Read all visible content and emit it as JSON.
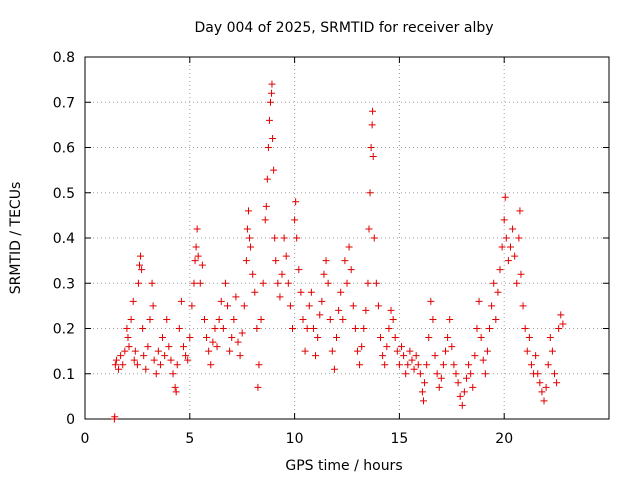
{
  "chart_data": {
    "type": "scatter",
    "title": "Day 004 of 2025, SRMTID for receiver alby",
    "xlabel": "GPS time / hours",
    "ylabel": "SRMTID / TECUs",
    "xlim": [
      0,
      25
    ],
    "ylim": [
      0,
      0.8
    ],
    "xticks": [
      "0",
      "5",
      "10",
      "15",
      "20"
    ],
    "yticks": [
      "0",
      "0.1",
      "0.2",
      "0.3",
      "0.4",
      "0.5",
      "0.6",
      "0.7",
      "0.8"
    ],
    "grid": true,
    "marker": "plus",
    "color": "#e00000",
    "series": [
      {
        "name": "SRMTID",
        "points": [
          [
            1.4,
            0.0
          ],
          [
            1.42,
            0.005
          ],
          [
            1.45,
            0.12
          ],
          [
            1.5,
            0.13
          ],
          [
            1.6,
            0.11
          ],
          [
            1.7,
            0.14
          ],
          [
            1.8,
            0.12
          ],
          [
            1.9,
            0.15
          ],
          [
            2.0,
            0.2
          ],
          [
            2.05,
            0.18
          ],
          [
            2.1,
            0.16
          ],
          [
            2.2,
            0.22
          ],
          [
            2.3,
            0.26
          ],
          [
            2.35,
            0.13
          ],
          [
            2.4,
            0.15
          ],
          [
            2.5,
            0.12
          ],
          [
            2.55,
            0.3
          ],
          [
            2.6,
            0.34
          ],
          [
            2.65,
            0.36
          ],
          [
            2.7,
            0.33
          ],
          [
            2.75,
            0.2
          ],
          [
            2.8,
            0.14
          ],
          [
            2.9,
            0.11
          ],
          [
            3.0,
            0.16
          ],
          [
            3.1,
            0.22
          ],
          [
            3.2,
            0.3
          ],
          [
            3.25,
            0.25
          ],
          [
            3.3,
            0.13
          ],
          [
            3.4,
            0.1
          ],
          [
            3.5,
            0.15
          ],
          [
            3.6,
            0.12
          ],
          [
            3.7,
            0.18
          ],
          [
            3.8,
            0.14
          ],
          [
            3.9,
            0.22
          ],
          [
            4.0,
            0.16
          ],
          [
            4.1,
            0.13
          ],
          [
            4.2,
            0.1
          ],
          [
            4.3,
            0.07
          ],
          [
            4.35,
            0.06
          ],
          [
            4.4,
            0.12
          ],
          [
            4.5,
            0.2
          ],
          [
            4.6,
            0.26
          ],
          [
            4.7,
            0.16
          ],
          [
            4.8,
            0.14
          ],
          [
            4.9,
            0.13
          ],
          [
            5.0,
            0.18
          ],
          [
            5.1,
            0.25
          ],
          [
            5.2,
            0.3
          ],
          [
            5.25,
            0.35
          ],
          [
            5.3,
            0.38
          ],
          [
            5.35,
            0.42
          ],
          [
            5.4,
            0.36
          ],
          [
            5.5,
            0.3
          ],
          [
            5.6,
            0.34
          ],
          [
            5.7,
            0.22
          ],
          [
            5.8,
            0.18
          ],
          [
            5.9,
            0.15
          ],
          [
            6.0,
            0.12
          ],
          [
            6.1,
            0.17
          ],
          [
            6.2,
            0.2
          ],
          [
            6.3,
            0.16
          ],
          [
            6.4,
            0.22
          ],
          [
            6.5,
            0.26
          ],
          [
            6.6,
            0.2
          ],
          [
            6.7,
            0.3
          ],
          [
            6.8,
            0.25
          ],
          [
            6.9,
            0.15
          ],
          [
            7.0,
            0.18
          ],
          [
            7.1,
            0.22
          ],
          [
            7.2,
            0.27
          ],
          [
            7.3,
            0.17
          ],
          [
            7.4,
            0.14
          ],
          [
            7.5,
            0.19
          ],
          [
            7.6,
            0.25
          ],
          [
            7.7,
            0.35
          ],
          [
            7.75,
            0.42
          ],
          [
            7.8,
            0.46
          ],
          [
            7.85,
            0.4
          ],
          [
            7.9,
            0.38
          ],
          [
            8.0,
            0.32
          ],
          [
            8.1,
            0.28
          ],
          [
            8.2,
            0.2
          ],
          [
            8.25,
            0.07
          ],
          [
            8.3,
            0.12
          ],
          [
            8.4,
            0.22
          ],
          [
            8.5,
            0.3
          ],
          [
            8.6,
            0.44
          ],
          [
            8.65,
            0.47
          ],
          [
            8.7,
            0.53
          ],
          [
            8.75,
            0.6
          ],
          [
            8.8,
            0.66
          ],
          [
            8.85,
            0.7
          ],
          [
            8.9,
            0.72
          ],
          [
            8.92,
            0.74
          ],
          [
            8.95,
            0.62
          ],
          [
            9.0,
            0.55
          ],
          [
            9.05,
            0.4
          ],
          [
            9.1,
            0.35
          ],
          [
            9.2,
            0.3
          ],
          [
            9.3,
            0.27
          ],
          [
            9.4,
            0.32
          ],
          [
            9.5,
            0.4
          ],
          [
            9.6,
            0.36
          ],
          [
            9.7,
            0.3
          ],
          [
            9.8,
            0.25
          ],
          [
            9.9,
            0.2
          ],
          [
            10.0,
            0.44
          ],
          [
            10.05,
            0.48
          ],
          [
            10.1,
            0.4
          ],
          [
            10.2,
            0.33
          ],
          [
            10.3,
            0.28
          ],
          [
            10.4,
            0.22
          ],
          [
            10.5,
            0.15
          ],
          [
            10.6,
            0.2
          ],
          [
            10.7,
            0.25
          ],
          [
            10.8,
            0.28
          ],
          [
            10.9,
            0.2
          ],
          [
            11.0,
            0.14
          ],
          [
            11.1,
            0.18
          ],
          [
            11.2,
            0.23
          ],
          [
            11.3,
            0.26
          ],
          [
            11.4,
            0.32
          ],
          [
            11.5,
            0.35
          ],
          [
            11.6,
            0.3
          ],
          [
            11.7,
            0.22
          ],
          [
            11.8,
            0.15
          ],
          [
            11.9,
            0.11
          ],
          [
            12.0,
            0.18
          ],
          [
            12.1,
            0.24
          ],
          [
            12.2,
            0.28
          ],
          [
            12.3,
            0.22
          ],
          [
            12.4,
            0.35
          ],
          [
            12.5,
            0.3
          ],
          [
            12.6,
            0.38
          ],
          [
            12.7,
            0.33
          ],
          [
            12.8,
            0.25
          ],
          [
            12.9,
            0.2
          ],
          [
            13.0,
            0.15
          ],
          [
            13.1,
            0.12
          ],
          [
            13.2,
            0.16
          ],
          [
            13.3,
            0.2
          ],
          [
            13.4,
            0.24
          ],
          [
            13.5,
            0.3
          ],
          [
            13.55,
            0.42
          ],
          [
            13.6,
            0.5
          ],
          [
            13.65,
            0.6
          ],
          [
            13.7,
            0.65
          ],
          [
            13.72,
            0.68
          ],
          [
            13.75,
            0.58
          ],
          [
            13.8,
            0.4
          ],
          [
            13.9,
            0.3
          ],
          [
            14.0,
            0.25
          ],
          [
            14.1,
            0.18
          ],
          [
            14.2,
            0.14
          ],
          [
            14.3,
            0.12
          ],
          [
            14.4,
            0.16
          ],
          [
            14.5,
            0.2
          ],
          [
            14.6,
            0.24
          ],
          [
            14.7,
            0.22
          ],
          [
            14.8,
            0.18
          ],
          [
            14.9,
            0.15
          ],
          [
            15.0,
            0.12
          ],
          [
            15.1,
            0.16
          ],
          [
            15.2,
            0.14
          ],
          [
            15.3,
            0.1
          ],
          [
            15.4,
            0.12
          ],
          [
            15.5,
            0.15
          ],
          [
            15.6,
            0.13
          ],
          [
            15.7,
            0.11
          ],
          [
            15.8,
            0.14
          ],
          [
            15.9,
            0.12
          ],
          [
            16.0,
            0.1
          ],
          [
            16.1,
            0.06
          ],
          [
            16.15,
            0.04
          ],
          [
            16.2,
            0.08
          ],
          [
            16.3,
            0.12
          ],
          [
            16.4,
            0.18
          ],
          [
            16.5,
            0.26
          ],
          [
            16.6,
            0.22
          ],
          [
            16.7,
            0.14
          ],
          [
            16.8,
            0.1
          ],
          [
            16.9,
            0.07
          ],
          [
            17.0,
            0.09
          ],
          [
            17.1,
            0.12
          ],
          [
            17.2,
            0.15
          ],
          [
            17.3,
            0.18
          ],
          [
            17.4,
            0.22
          ],
          [
            17.5,
            0.16
          ],
          [
            17.6,
            0.12
          ],
          [
            17.7,
            0.1
          ],
          [
            17.8,
            0.08
          ],
          [
            17.9,
            0.05
          ],
          [
            18.0,
            0.03
          ],
          [
            18.1,
            0.06
          ],
          [
            18.2,
            0.09
          ],
          [
            18.3,
            0.12
          ],
          [
            18.4,
            0.1
          ],
          [
            18.5,
            0.07
          ],
          [
            18.6,
            0.14
          ],
          [
            18.7,
            0.2
          ],
          [
            18.8,
            0.26
          ],
          [
            18.9,
            0.18
          ],
          [
            19.0,
            0.13
          ],
          [
            19.1,
            0.1
          ],
          [
            19.2,
            0.15
          ],
          [
            19.3,
            0.2
          ],
          [
            19.4,
            0.25
          ],
          [
            19.5,
            0.3
          ],
          [
            19.6,
            0.22
          ],
          [
            19.7,
            0.28
          ],
          [
            19.8,
            0.33
          ],
          [
            19.9,
            0.38
          ],
          [
            20.0,
            0.44
          ],
          [
            20.05,
            0.49
          ],
          [
            20.1,
            0.4
          ],
          [
            20.2,
            0.35
          ],
          [
            20.3,
            0.38
          ],
          [
            20.4,
            0.42
          ],
          [
            20.5,
            0.36
          ],
          [
            20.6,
            0.3
          ],
          [
            20.7,
            0.4
          ],
          [
            20.75,
            0.46
          ],
          [
            20.8,
            0.32
          ],
          [
            20.9,
            0.25
          ],
          [
            21.0,
            0.2
          ],
          [
            21.1,
            0.15
          ],
          [
            21.2,
            0.18
          ],
          [
            21.3,
            0.12
          ],
          [
            21.4,
            0.1
          ],
          [
            21.5,
            0.14
          ],
          [
            21.6,
            0.1
          ],
          [
            21.7,
            0.08
          ],
          [
            21.8,
            0.06
          ],
          [
            21.9,
            0.04
          ],
          [
            22.0,
            0.07
          ],
          [
            22.1,
            0.12
          ],
          [
            22.2,
            0.18
          ],
          [
            22.3,
            0.15
          ],
          [
            22.4,
            0.1
          ],
          [
            22.5,
            0.08
          ],
          [
            22.6,
            0.2
          ],
          [
            22.7,
            0.23
          ],
          [
            22.8,
            0.21
          ]
        ]
      }
    ]
  }
}
